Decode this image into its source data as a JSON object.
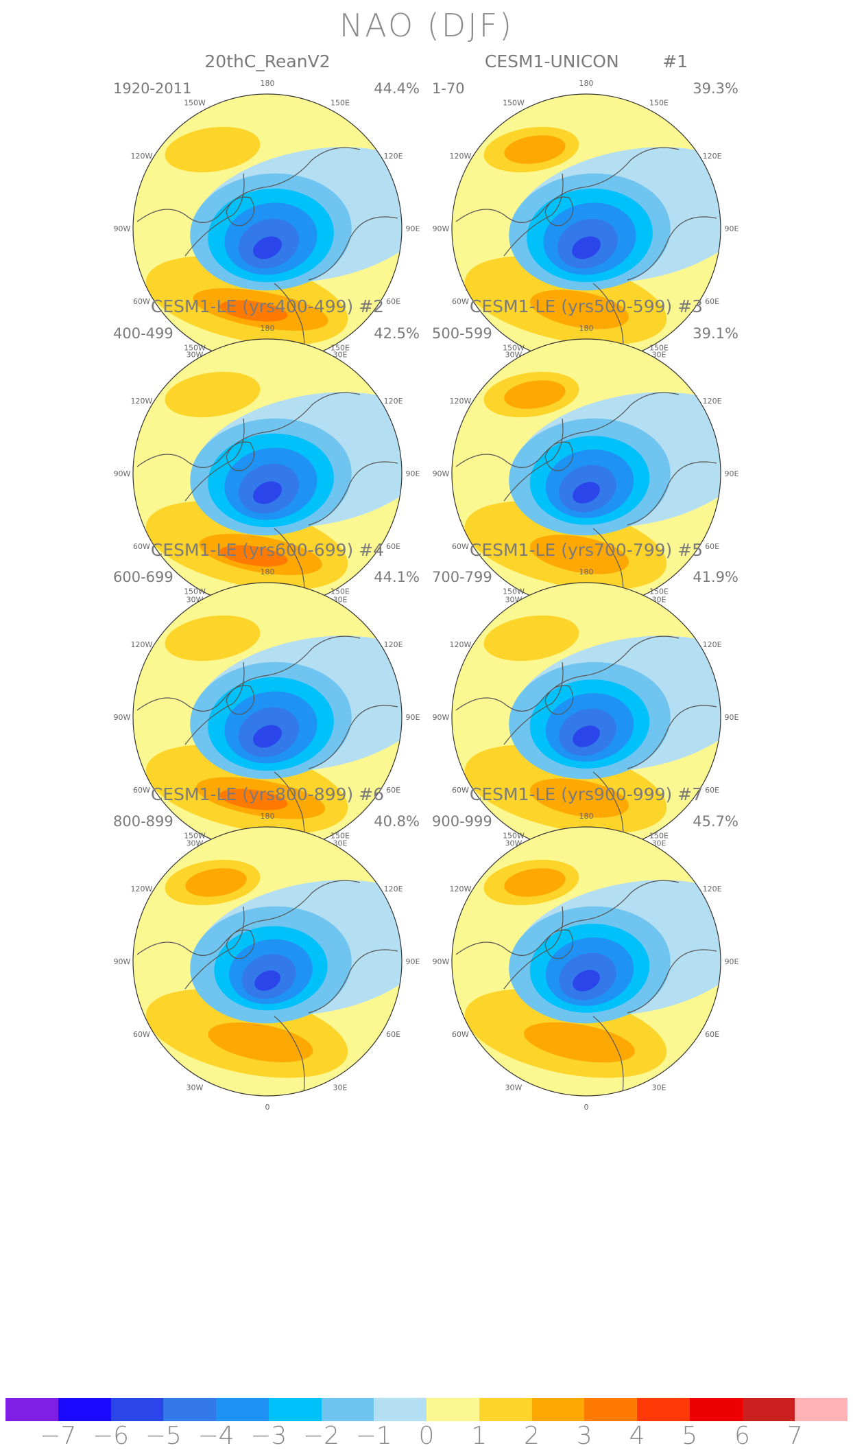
{
  "title": "NAO (DJF)",
  "panels": [
    {
      "title": "20thC_ReanV2",
      "period": "1920-2011",
      "percent": "44.4%",
      "lowStrength": 1.0,
      "highStrength": 1.0,
      "pacificHigh": 0.6
    },
    {
      "title": "CESM1-UNICON        #1",
      "period": "1-70",
      "percent": "39.3%",
      "lowStrength": 1.0,
      "highStrength": 0.7,
      "pacificHigh": 0.9
    },
    {
      "title": "CESM1-LE (yrs400-499) #2",
      "period": "400-499",
      "percent": "42.5%",
      "lowStrength": 1.0,
      "highStrength": 0.9,
      "pacificHigh": 0.6
    },
    {
      "title": "CESM1-LE (yrs500-599) #3",
      "period": "500-599",
      "percent": "39.1%",
      "lowStrength": 0.95,
      "highStrength": 0.7,
      "pacificHigh": 0.8
    },
    {
      "title": "CESM1-LE (yrs600-699) #4",
      "period": "600-699",
      "percent": "44.1%",
      "lowStrength": 1.0,
      "highStrength": 0.95,
      "pacificHigh": 0.6
    },
    {
      "title": "CESM1-LE (yrs700-799) #5",
      "period": "700-799",
      "percent": "41.9%",
      "lowStrength": 0.95,
      "highStrength": 0.7,
      "pacificHigh": 0.5
    },
    {
      "title": "CESM1-LE (yrs800-899) #6",
      "period": "800-899",
      "percent": "40.8%",
      "lowStrength": 0.9,
      "highStrength": 0.75,
      "pacificHigh": 0.8
    },
    {
      "title": "CESM1-LE (yrs900-999) #7",
      "period": "900-999",
      "percent": "45.7%",
      "lowStrength": 0.95,
      "highStrength": 0.8,
      "pacificHigh": 0.8
    }
  ],
  "longitude_labels": [
    "180",
    "150E",
    "120E",
    "90E",
    "60E",
    "30E",
    "0",
    "30W",
    "60W",
    "90W",
    "120W",
    "150W"
  ],
  "colorbar": {
    "colors": [
      "#7f1fe6",
      "#1a0aff",
      "#2a46ea",
      "#3479ea",
      "#1e93f5",
      "#00c1fa",
      "#70c4f0",
      "#b4def2",
      "#fcf891",
      "#fdd42a",
      "#fea804",
      "#ff7a00",
      "#ff3a06",
      "#ee0000",
      "#cc1f1f",
      "#ffb3b5"
    ],
    "labels": [
      "−7",
      "−6",
      "−5",
      "−4",
      "−3",
      "−2",
      "−1",
      "0",
      "1",
      "2",
      "3",
      "4",
      "5",
      "6",
      "7"
    ]
  }
}
